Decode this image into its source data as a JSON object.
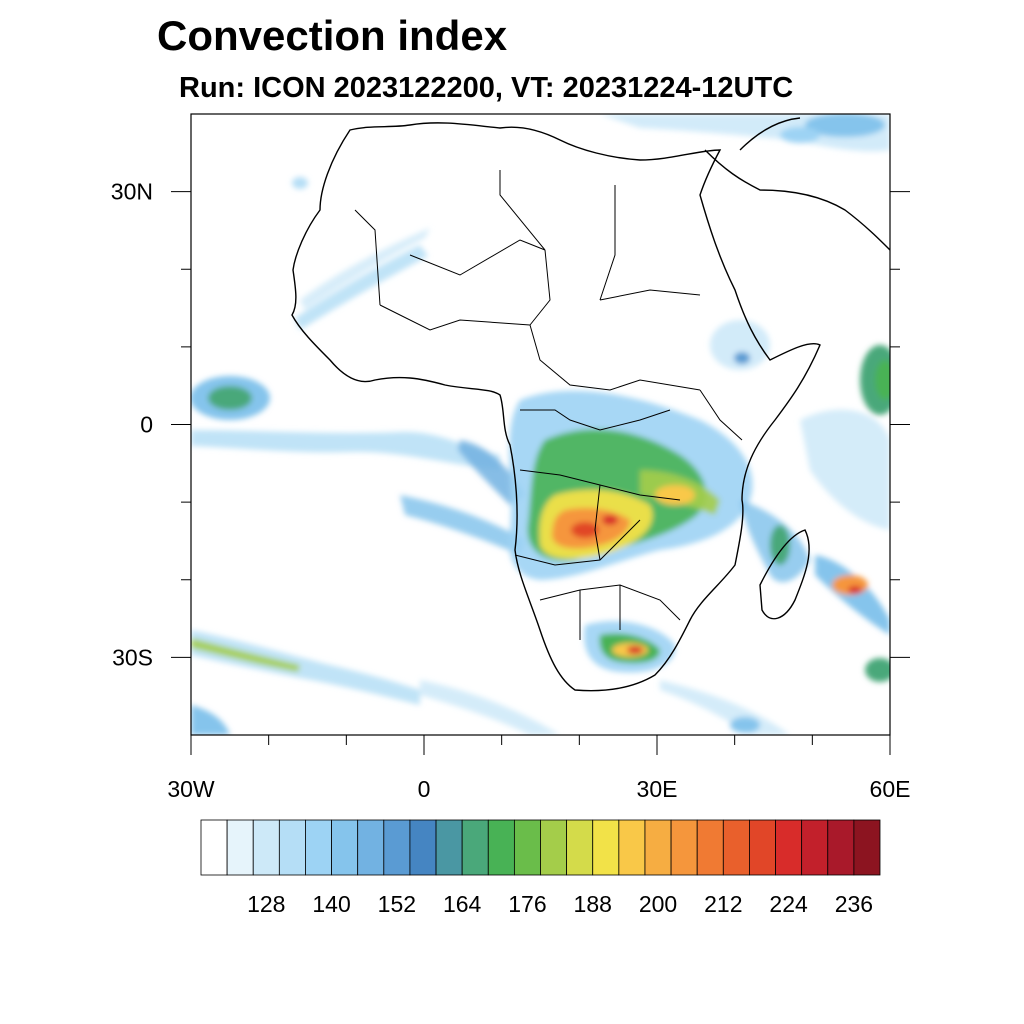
{
  "title": "Convection index",
  "subtitle": "Run: ICON 2023122200,  VT: 20231224-12UTC",
  "lat_ticks": [
    {
      "lat": 30,
      "label": "30N"
    },
    {
      "lat": 0,
      "label": "0"
    },
    {
      "lat": -30,
      "label": "30S"
    }
  ],
  "lon_ticks": [
    {
      "lon": -30,
      "label": "30W"
    },
    {
      "lon": 0,
      "label": "0"
    },
    {
      "lon": 30,
      "label": "30E"
    },
    {
      "lon": 60,
      "label": "60E"
    }
  ],
  "extent": {
    "lon_min": -30,
    "lon_max": 60,
    "lat_min": -40,
    "lat_max": 40
  },
  "colorbar": {
    "colors": [
      "#ffffff",
      "#e6f4fb",
      "#cde9f8",
      "#b5def6",
      "#9dd3f4",
      "#85c4ec",
      "#72b2e2",
      "#5a9bd3",
      "#4585c2",
      "#4a97a3",
      "#4aa87a",
      "#48b255",
      "#6abd4a",
      "#a4cd4a",
      "#d4db4a",
      "#f2e248",
      "#f9c848",
      "#f6ad42",
      "#f5963c",
      "#f07a33",
      "#e9602c",
      "#e14628",
      "#d82c2a",
      "#c2202b",
      "#a9192a",
      "#8c1420"
    ],
    "labels": [
      "128",
      "140",
      "152",
      "164",
      "176",
      "188",
      "200",
      "212",
      "224",
      "236"
    ]
  },
  "map_layers": [
    "convection-field",
    "coastlines",
    "country-borders"
  ]
}
